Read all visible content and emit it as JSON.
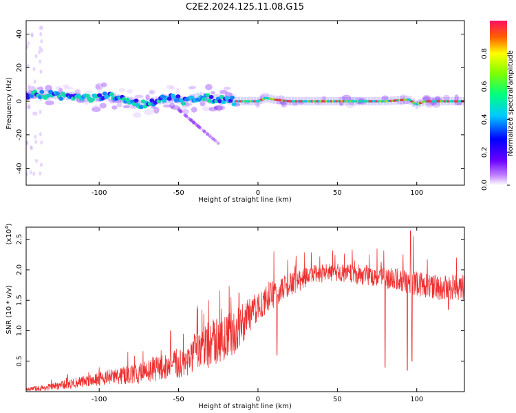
{
  "title": "C2E2.2024.125.11.08.G15",
  "colors": {
    "snr_line": "#ee3030",
    "axis": "#000000"
  },
  "chart_data": [
    {
      "type": "heatmap",
      "xlabel": "Height of straight line (km)",
      "ylabel": "Frequency (Hz)",
      "xlim": [
        -146,
        130
      ],
      "ylim": [
        -50,
        48
      ],
      "xticks": [
        -100,
        -50,
        0,
        50,
        100
      ],
      "yticks": [
        -40,
        -20,
        0,
        20,
        40
      ],
      "colorbar": {
        "label": "Normalized spectral amplitude",
        "range": [
          0,
          1
        ],
        "ticks": [
          "0.0",
          "0.2",
          "0.4",
          "0.6",
          "0.8"
        ],
        "colormap": "rainbow"
      },
      "ridge": [
        [
          -146,
          3
        ],
        [
          -140,
          4
        ],
        [
          -130,
          4
        ],
        [
          -120,
          3
        ],
        [
          -110,
          2
        ],
        [
          -100,
          2
        ],
        [
          -95,
          3
        ],
        [
          -90,
          2
        ],
        [
          -85,
          1
        ],
        [
          -80,
          0
        ],
        [
          -75,
          -2
        ],
        [
          -70,
          -1
        ],
        [
          -65,
          0
        ],
        [
          -60,
          1
        ],
        [
          -55,
          2
        ],
        [
          -50,
          1
        ],
        [
          -45,
          0
        ],
        [
          -40,
          2
        ],
        [
          -35,
          3
        ],
        [
          -30,
          1
        ],
        [
          -25,
          2
        ],
        [
          -20,
          1
        ],
        [
          -15,
          0
        ],
        [
          -10,
          0
        ],
        [
          -5,
          0
        ],
        [
          0,
          0
        ],
        [
          5,
          2
        ],
        [
          10,
          1
        ],
        [
          20,
          0
        ],
        [
          40,
          0
        ],
        [
          60,
          0
        ],
        [
          80,
          0
        ],
        [
          95,
          1
        ],
        [
          100,
          -2
        ],
        [
          105,
          0
        ],
        [
          115,
          0
        ],
        [
          130,
          0
        ]
      ]
    },
    {
      "type": "line",
      "xlabel": "Height of straight line (km)",
      "ylabel": "SNR (10 * v/v)",
      "yscale_label": "(x10",
      "yscale_exp": "4",
      "xlim": [
        -146,
        130
      ],
      "ylim": [
        0,
        2.7
      ],
      "xticks": [
        -100,
        -50,
        0,
        50,
        100
      ],
      "yticks": [
        "0.5",
        "1.0",
        "1.5",
        "2.0",
        "2.5"
      ],
      "envelope": [
        [
          -146,
          0.04
        ],
        [
          -135,
          0.06
        ],
        [
          -125,
          0.1
        ],
        [
          -115,
          0.14
        ],
        [
          -105,
          0.2
        ],
        [
          -95,
          0.24
        ],
        [
          -85,
          0.26
        ],
        [
          -75,
          0.3
        ],
        [
          -65,
          0.38
        ],
        [
          -55,
          0.42
        ],
        [
          -45,
          0.5
        ],
        [
          -40,
          0.6
        ],
        [
          -35,
          0.7
        ],
        [
          -30,
          0.78
        ],
        [
          -25,
          0.85
        ],
        [
          -20,
          0.88
        ],
        [
          -15,
          0.95
        ],
        [
          -10,
          1.12
        ],
        [
          -5,
          1.25
        ],
        [
          0,
          1.4
        ],
        [
          5,
          1.5
        ],
        [
          10,
          1.6
        ],
        [
          15,
          1.68
        ],
        [
          20,
          1.75
        ],
        [
          25,
          1.82
        ],
        [
          30,
          1.88
        ],
        [
          35,
          1.92
        ],
        [
          45,
          1.95
        ],
        [
          55,
          1.95
        ],
        [
          65,
          1.92
        ],
        [
          75,
          1.9
        ],
        [
          85,
          1.85
        ],
        [
          95,
          1.8
        ],
        [
          105,
          1.75
        ],
        [
          115,
          1.7
        ],
        [
          125,
          1.72
        ],
        [
          130,
          1.7
        ]
      ],
      "noise": [
        [
          -146,
          0.03
        ],
        [
          -120,
          0.08
        ],
        [
          -100,
          0.12
        ],
        [
          -80,
          0.16
        ],
        [
          -60,
          0.22
        ],
        [
          -40,
          0.3
        ],
        [
          -30,
          0.4
        ],
        [
          -20,
          0.4
        ],
        [
          -12,
          0.35
        ],
        [
          -5,
          0.3
        ],
        [
          0,
          0.25
        ],
        [
          20,
          0.2
        ],
        [
          40,
          0.15
        ],
        [
          60,
          0.16
        ],
        [
          80,
          0.18
        ],
        [
          100,
          0.2
        ],
        [
          130,
          0.22
        ]
      ],
      "spikes": [
        [
          -24,
          1.66
        ],
        [
          -12,
          1.62
        ],
        [
          -31,
          1.5
        ],
        [
          -17,
          1.55
        ],
        [
          10,
          2.3
        ],
        [
          12,
          0.6
        ],
        [
          96,
          2.64
        ],
        [
          98,
          2.55
        ],
        [
          94,
          0.35
        ],
        [
          97,
          0.5
        ],
        [
          -47,
          0.95
        ],
        [
          -55,
          1.0
        ],
        [
          -40,
          0.95
        ],
        [
          125,
          2.2
        ],
        [
          120,
          1.35
        ],
        [
          -100,
          0.4
        ],
        [
          -120,
          0.28
        ],
        [
          80,
          0.4
        ],
        [
          75,
          2.35
        ],
        [
          70,
          2.25
        ]
      ]
    }
  ]
}
